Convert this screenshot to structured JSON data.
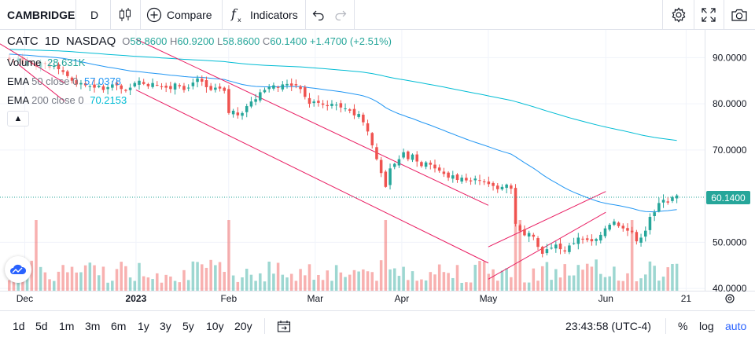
{
  "toolbar": {
    "symbol": "CAMBRIDGE",
    "interval": "D",
    "compare_label": "Compare",
    "indicators_label": "Indicators"
  },
  "legend": {
    "ticker": "CATC",
    "interval": "1D",
    "exchange": "NASDAQ",
    "open_key": "O",
    "open": "58.8600",
    "high_key": "H",
    "high": "60.9200",
    "low_key": "L",
    "low": "58.8600",
    "close_key": "C",
    "close": "60.1400",
    "change": "+1.4700 (+2.51%)"
  },
  "studies": [
    {
      "name": "Volume",
      "params": "",
      "value": "28.631K"
    },
    {
      "name": "EMA",
      "params": "50 close 0",
      "value": "57.0378"
    },
    {
      "name": "EMA",
      "params": "200 close 0",
      "value": "70.2153"
    }
  ],
  "price_label": "60.1400",
  "bottom": {
    "ranges": [
      "1d",
      "5d",
      "1m",
      "3m",
      "6m",
      "1y",
      "3y",
      "5y",
      "10y",
      "20y"
    ],
    "time": "23:43:58 (UTC-4)",
    "percent": "%",
    "log": "log",
    "auto": "auto"
  },
  "colors": {
    "up": "#26a69a",
    "down": "#ef5350",
    "ema50": "#2196f3",
    "ema200": "#00bcd4",
    "channel": "#e91e63"
  },
  "chart_data": {
    "type": "candlestick",
    "y_ticks": [
      "90.0000",
      "80.0000",
      "70.0000",
      "50.0000",
      "40.0000"
    ],
    "y_tick_values": [
      90,
      80,
      70,
      50,
      40
    ],
    "ylim": [
      39.5,
      95
    ],
    "x_ticks": [
      "Dec",
      "2023",
      "Feb",
      "Mar",
      "Apr",
      "May",
      "Jun",
      "21"
    ],
    "x_tick_days": [
      0,
      36,
      66,
      94,
      122,
      150,
      188,
      214
    ],
    "x_range_days": [
      -8,
      220
    ],
    "last_close": 60.14,
    "closes": [
      89.5,
      89,
      89.8,
      88.6,
      89.2,
      88.5,
      88,
      89,
      88.7,
      87.8,
      88.2,
      87.5,
      86.9,
      86,
      85,
      84.2,
      84.5,
      84,
      83.8,
      83.5,
      83.9,
      83,
      83.6,
      84.2,
      84,
      83.2,
      82.8,
      83.5,
      84.5,
      85,
      84.3,
      83.8,
      84.5,
      84.1,
      83.7,
      83.5,
      83.2,
      84.4,
      83.8,
      83,
      83.5,
      84.6,
      85.5,
      84.8,
      83.6,
      83,
      83.5,
      83.3,
      82.8,
      78,
      78.5,
      77.5,
      78,
      79.5,
      80.5,
      81,
      82.5,
      83,
      83.6,
      84,
      83.5,
      84.2,
      84.3,
      83.9,
      84,
      83.2,
      81.5,
      80,
      80.5,
      80.2,
      79.8,
      79.5,
      80,
      79.8,
      79.2,
      79,
      78.5,
      77.5,
      77.8,
      76,
      74,
      71,
      68,
      65,
      62,
      66,
      67,
      68,
      69.5,
      68,
      69,
      67.5,
      66.5,
      67.3,
      66.8,
      66,
      65.5,
      64.8,
      64,
      64.5,
      63.5,
      64,
      63.4,
      63.2,
      63.8,
      63.4,
      63,
      62.6,
      62.2,
      61.5,
      62,
      62.5,
      61.6,
      54,
      52.5,
      51.5,
      52,
      51.2,
      49,
      47.5,
      48.5,
      48.8,
      49.5,
      48.5,
      48,
      49.3,
      49.8,
      51,
      50.6,
      50.5,
      50.2,
      50.7,
      51.6,
      53,
      53.8,
      54.5,
      53.5,
      53,
      52.5,
      52.2,
      50.2,
      51,
      52.5,
      55.5,
      56.5,
      58.5,
      59.2,
      58.6,
      59.8,
      60.14
    ],
    "volume_label": "Volume",
    "ema50_label": "EMA 50 close 0",
    "ema200_label": "EMA 200 close 0"
  }
}
